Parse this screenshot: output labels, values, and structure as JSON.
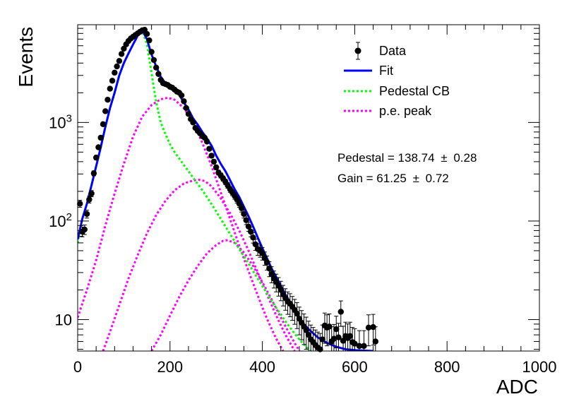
{
  "chart_data": {
    "type": "scatter",
    "xlabel": "ADC",
    "ylabel": "Events",
    "xlim": [
      0,
      1000
    ],
    "ylim": [
      4.8,
      9800
    ],
    "yscale": "log",
    "x_ticks": [
      "0",
      "200",
      "400",
      "600",
      "800",
      "1000"
    ],
    "y_ticks": [
      {
        "value": 10,
        "label": "10"
      },
      {
        "value": 100,
        "label": "10",
        "exp": "2"
      },
      {
        "value": 1000,
        "label": "10",
        "exp": "3"
      }
    ],
    "legend": {
      "position": "top-right",
      "entries": [
        {
          "label": "Data",
          "color": "#000000",
          "style": "marker"
        },
        {
          "label": "Fit",
          "color": "#0000ff",
          "style": "solid"
        },
        {
          "label": "Pedestal CB",
          "color": "#00ff00",
          "style": "dotted"
        },
        {
          "label": "p.e. peak",
          "color": "#ff00ff",
          "style": "dotted"
        }
      ]
    },
    "annotations": [
      {
        "text": "Pedestal = 138.74",
        "pm": "±",
        "err": "0.28"
      },
      {
        "text": "Gain = 61.25",
        "pm": "±",
        "err": "0.72"
      }
    ],
    "data_points": [
      [
        5,
        150
      ],
      [
        10,
        78
      ],
      [
        15,
        82
      ],
      [
        20,
        118
      ],
      [
        25,
        165
      ],
      [
        30,
        190
      ],
      [
        35,
        305
      ],
      [
        40,
        440
      ],
      [
        45,
        560
      ],
      [
        50,
        700
      ],
      [
        55,
        960
      ],
      [
        60,
        1300
      ],
      [
        65,
        1700
      ],
      [
        70,
        2200
      ],
      [
        75,
        2650
      ],
      [
        80,
        3200
      ],
      [
        85,
        3700
      ],
      [
        90,
        4200
      ],
      [
        95,
        4950
      ],
      [
        100,
        5600
      ],
      [
        105,
        6200
      ],
      [
        110,
        6700
      ],
      [
        115,
        7100
      ],
      [
        120,
        7400
      ],
      [
        125,
        7700
      ],
      [
        130,
        8000
      ],
      [
        135,
        8300
      ],
      [
        140,
        8600
      ],
      [
        145,
        8700
      ],
      [
        150,
        7900
      ],
      [
        155,
        6800
      ],
      [
        160,
        5200
      ],
      [
        165,
        4300
      ],
      [
        170,
        3600
      ],
      [
        175,
        3100
      ],
      [
        180,
        2700
      ],
      [
        185,
        2500
      ],
      [
        190,
        2450
      ],
      [
        195,
        2400
      ],
      [
        200,
        2300
      ],
      [
        205,
        2250
      ],
      [
        210,
        2150
      ],
      [
        215,
        2050
      ],
      [
        220,
        2000
      ],
      [
        225,
        1880
      ],
      [
        230,
        1640
      ],
      [
        235,
        1400
      ],
      [
        240,
        1220
      ],
      [
        245,
        1080
      ],
      [
        250,
        1000
      ],
      [
        255,
        880
      ],
      [
        260,
        820
      ],
      [
        265,
        775
      ],
      [
        270,
        725
      ],
      [
        275,
        700
      ],
      [
        280,
        640
      ],
      [
        285,
        540
      ],
      [
        290,
        460
      ],
      [
        295,
        400
      ],
      [
        300,
        350
      ],
      [
        305,
        310
      ],
      [
        310,
        290
      ],
      [
        315,
        270
      ],
      [
        320,
        250
      ],
      [
        325,
        230
      ],
      [
        330,
        210
      ],
      [
        335,
        195
      ],
      [
        340,
        180
      ],
      [
        345,
        165
      ],
      [
        350,
        150
      ],
      [
        355,
        135
      ],
      [
        360,
        118
      ],
      [
        365,
        102
      ],
      [
        370,
        88
      ],
      [
        375,
        78
      ],
      [
        380,
        68
      ],
      [
        385,
        58
      ],
      [
        390,
        52
      ],
      [
        395,
        50
      ],
      [
        400,
        47
      ],
      [
        405,
        42
      ],
      [
        410,
        38
      ],
      [
        415,
        33
      ],
      [
        420,
        29
      ],
      [
        425,
        26
      ],
      [
        430,
        24
      ],
      [
        435,
        22
      ],
      [
        440,
        20
      ],
      [
        445,
        18
      ],
      [
        450,
        16.5
      ],
      [
        455,
        15.2
      ],
      [
        460,
        14.5
      ],
      [
        465,
        13.5
      ],
      [
        470,
        12.5
      ],
      [
        475,
        11.5
      ],
      [
        480,
        10.2
      ],
      [
        485,
        9.3
      ],
      [
        490,
        8.5
      ],
      [
        495,
        7.8
      ],
      [
        500,
        7.0
      ],
      [
        505,
        6.3
      ],
      [
        510,
        5.9
      ],
      [
        515,
        5.5
      ],
      [
        520,
        5.2
      ],
      [
        525,
        5.0
      ],
      [
        530,
        6.3
      ],
      [
        535,
        8.7
      ],
      [
        540,
        8.3
      ],
      [
        545,
        8.5
      ],
      [
        550,
        6.0
      ],
      [
        555,
        6.4
      ],
      [
        560,
        8.0
      ],
      [
        565,
        6.6
      ],
      [
        570,
        12.0
      ],
      [
        575,
        6.1
      ],
      [
        580,
        6.8
      ],
      [
        585,
        6.5
      ],
      [
        590,
        6.8
      ],
      [
        595,
        5.9
      ],
      [
        600,
        5.7
      ],
      [
        610,
        5.4
      ],
      [
        620,
        5.4
      ],
      [
        630,
        8.3
      ],
      [
        640,
        8.4
      ],
      [
        645,
        6.0
      ]
    ],
    "fit_curve": [
      [
        0,
        65
      ],
      [
        10,
        105
      ],
      [
        20,
        150
      ],
      [
        30,
        230
      ],
      [
        40,
        360
      ],
      [
        50,
        560
      ],
      [
        60,
        900
      ],
      [
        70,
        1400
      ],
      [
        80,
        2000
      ],
      [
        90,
        3000
      ],
      [
        100,
        4000
      ],
      [
        110,
        5000
      ],
      [
        120,
        6200
      ],
      [
        130,
        7600
      ],
      [
        140,
        8600
      ],
      [
        150,
        7000
      ],
      [
        160,
        4900
      ],
      [
        170,
        3700
      ],
      [
        180,
        2900
      ],
      [
        190,
        2500
      ],
      [
        200,
        2300
      ],
      [
        210,
        2100
      ],
      [
        220,
        1900
      ],
      [
        230,
        1600
      ],
      [
        240,
        1350
      ],
      [
        250,
        1100
      ],
      [
        260,
        950
      ],
      [
        270,
        800
      ],
      [
        280,
        690
      ],
      [
        290,
        580
      ],
      [
        300,
        460
      ],
      [
        310,
        380
      ],
      [
        320,
        320
      ],
      [
        330,
        260
      ],
      [
        340,
        210
      ],
      [
        350,
        175
      ],
      [
        360,
        140
      ],
      [
        370,
        112
      ],
      [
        380,
        88
      ],
      [
        390,
        68
      ],
      [
        400,
        53
      ],
      [
        410,
        42
      ],
      [
        420,
        33
      ],
      [
        430,
        27
      ],
      [
        440,
        22
      ],
      [
        450,
        18
      ],
      [
        460,
        15
      ],
      [
        470,
        12.5
      ],
      [
        480,
        10.5
      ],
      [
        490,
        9
      ],
      [
        500,
        8
      ],
      [
        520,
        6.6
      ],
      [
        540,
        5.8
      ],
      [
        560,
        5.3
      ],
      [
        580,
        5.0
      ],
      [
        600,
        4.9
      ],
      [
        620,
        4.85
      ],
      [
        640,
        4.8
      ]
    ],
    "pedestal_cb": [
      [
        0,
        60
      ],
      [
        10,
        105
      ],
      [
        20,
        150
      ],
      [
        30,
        230
      ],
      [
        40,
        360
      ],
      [
        50,
        560
      ],
      [
        60,
        900
      ],
      [
        70,
        1400
      ],
      [
        80,
        2000
      ],
      [
        90,
        3000
      ],
      [
        100,
        4000
      ],
      [
        110,
        5000
      ],
      [
        120,
        6200
      ],
      [
        130,
        7600
      ],
      [
        140,
        8400
      ],
      [
        150,
        6200
      ],
      [
        160,
        3200
      ],
      [
        170,
        1600
      ],
      [
        180,
        1000
      ],
      [
        190,
        760
      ],
      [
        200,
        600
      ],
      [
        210,
        500
      ],
      [
        220,
        430
      ],
      [
        230,
        370
      ],
      [
        240,
        320
      ],
      [
        250,
        275
      ],
      [
        260,
        238
      ],
      [
        270,
        205
      ],
      [
        280,
        175
      ],
      [
        290,
        148
      ],
      [
        300,
        125
      ],
      [
        310,
        105
      ],
      [
        320,
        88
      ],
      [
        330,
        74
      ],
      [
        340,
        62
      ],
      [
        350,
        52
      ],
      [
        360,
        44
      ],
      [
        370,
        37
      ],
      [
        380,
        31
      ],
      [
        390,
        26
      ],
      [
        400,
        22
      ],
      [
        410,
        18.5
      ],
      [
        420,
        15.6
      ],
      [
        430,
        13.2
      ],
      [
        440,
        11.3
      ],
      [
        450,
        9.6
      ],
      [
        460,
        8.3
      ],
      [
        470,
        7.2
      ],
      [
        480,
        6.3
      ],
      [
        490,
        5.6
      ],
      [
        500,
        5.0
      ],
      [
        510,
        4.6
      ]
    ],
    "pe_peaks": [
      {
        "name": "",
        "points": [
          [
            0,
            10.5
          ],
          [
            20,
            20
          ],
          [
            40,
            40
          ],
          [
            60,
            90
          ],
          [
            80,
            190
          ],
          [
            100,
            380
          ],
          [
            120,
            720
          ],
          [
            140,
            1150
          ],
          [
            160,
            1500
          ],
          [
            180,
            1720
          ],
          [
            195,
            1780
          ],
          [
            210,
            1700
          ],
          [
            230,
            1400
          ],
          [
            250,
            1000
          ],
          [
            270,
            620
          ],
          [
            290,
            360
          ],
          [
            310,
            195
          ],
          [
            330,
            105
          ],
          [
            350,
            56
          ],
          [
            370,
            31
          ],
          [
            390,
            17.5
          ],
          [
            410,
            10.2
          ],
          [
            430,
            6.4
          ],
          [
            445,
            4.8
          ]
        ]
      },
      {
        "name": "",
        "points": [
          [
            55,
            4.8
          ],
          [
            70,
            7.5
          ],
          [
            90,
            14
          ],
          [
            110,
            26
          ],
          [
            130,
            45
          ],
          [
            150,
            75
          ],
          [
            170,
            115
          ],
          [
            190,
            160
          ],
          [
            210,
            205
          ],
          [
            230,
            240
          ],
          [
            250,
            258
          ],
          [
            262,
            262
          ],
          [
            275,
            255
          ],
          [
            290,
            225
          ],
          [
            310,
            170
          ],
          [
            330,
            120
          ],
          [
            350,
            80
          ],
          [
            370,
            50
          ],
          [
            390,
            30
          ],
          [
            410,
            18
          ],
          [
            430,
            11
          ],
          [
            450,
            7
          ],
          [
            470,
            4.8
          ]
        ]
      },
      {
        "name": "",
        "points": [
          [
            160,
            4.8
          ],
          [
            180,
            7
          ],
          [
            200,
            11
          ],
          [
            220,
            17
          ],
          [
            240,
            25
          ],
          [
            260,
            35
          ],
          [
            280,
            47
          ],
          [
            300,
            57
          ],
          [
            315,
            63
          ],
          [
            325,
            64
          ],
          [
            340,
            60
          ],
          [
            360,
            48
          ],
          [
            380,
            35
          ],
          [
            400,
            24
          ],
          [
            420,
            16
          ],
          [
            440,
            10.5
          ],
          [
            460,
            7
          ],
          [
            480,
            4.8
          ]
        ]
      }
    ]
  }
}
